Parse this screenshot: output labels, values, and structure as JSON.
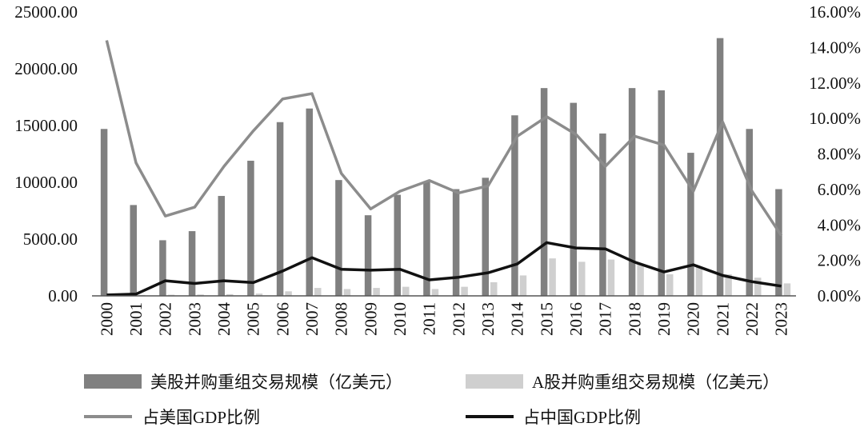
{
  "chart_data": {
    "type": "bar+line",
    "categories": [
      "2000",
      "2001",
      "2002",
      "2003",
      "2004",
      "2005",
      "2006",
      "2007",
      "2008",
      "2009",
      "2010",
      "2011",
      "2012",
      "2013",
      "2014",
      "2015",
      "2016",
      "2017",
      "2018",
      "2019",
      "2020",
      "2021",
      "2022",
      "2023"
    ],
    "y_left": {
      "ylim": [
        0,
        25000
      ],
      "ticks": [
        "0.00",
        "5000.00",
        "10000.00",
        "15000.00",
        "20000.00",
        "25000.00"
      ]
    },
    "y_right": {
      "ylim": [
        0,
        16
      ],
      "ticks": [
        "0.00%",
        "2.00%",
        "4.00%",
        "6.00%",
        "8.00%",
        "10.00%",
        "12.00%",
        "14.00%",
        "16.00%"
      ]
    },
    "bar_series": [
      {
        "name": "美股并购重组交易规模（亿美元）",
        "color": "#808080",
        "values": [
          14700,
          8000,
          4900,
          5700,
          8800,
          11900,
          15300,
          16500,
          10200,
          7100,
          8900,
          10100,
          9400,
          10400,
          15900,
          18300,
          17000,
          14300,
          18300,
          18100,
          12600,
          22700,
          14700,
          9400
        ]
      },
      {
        "name": "A股并购重组交易规模（亿美元）",
        "color": "#cfcfcf",
        "values": [
          50,
          80,
          100,
          120,
          150,
          200,
          400,
          700,
          600,
          700,
          800,
          600,
          800,
          1200,
          1800,
          3300,
          3000,
          3200,
          2800,
          1900,
          2500,
          1900,
          1600,
          1100
        ]
      }
    ],
    "line_series": [
      {
        "name": "占美国GDP比例",
        "color": "#8c8c8c",
        "values": [
          14.4,
          7.5,
          4.5,
          5.0,
          7.3,
          9.3,
          11.1,
          11.4,
          6.9,
          4.9,
          5.9,
          6.5,
          5.8,
          6.2,
          9.0,
          10.1,
          9.1,
          7.3,
          9.0,
          8.5,
          5.9,
          9.8,
          5.9,
          3.4
        ]
      },
      {
        "name": "占中国GDP比例",
        "color": "#111111",
        "values": [
          0.05,
          0.1,
          0.85,
          0.7,
          0.85,
          0.75,
          1.4,
          2.15,
          1.5,
          1.45,
          1.5,
          0.9,
          1.05,
          1.3,
          1.8,
          3.0,
          2.7,
          2.65,
          1.9,
          1.35,
          1.75,
          1.15,
          0.8,
          0.55
        ]
      }
    ],
    "legend_placement": "bottom",
    "grid": false
  }
}
